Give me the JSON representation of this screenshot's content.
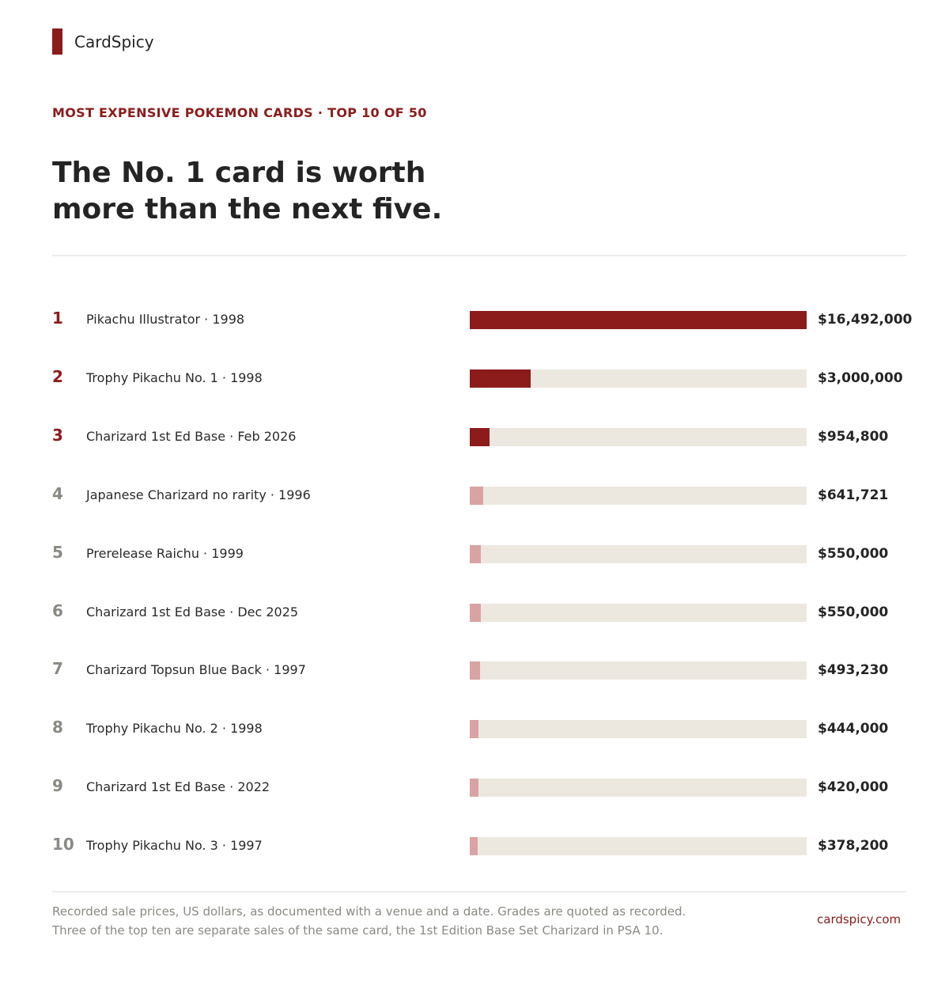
{
  "brand": {
    "name": "CardSpicy"
  },
  "kicker": "MOST EXPENSIVE POKEMON CARDS · TOP 10 OF 50",
  "headline": {
    "line1": "The No. 1 card is worth",
    "line2": "more than the next five."
  },
  "colors": {
    "accent": "#8c1c1c",
    "top_three_bar": "#8c1c1c",
    "other_bar": "#d9a3a3",
    "track": "#ece8e0",
    "top_rank_text": "#8c1c1c",
    "other_rank_text": "#8a8a84"
  },
  "chart_data": {
    "type": "bar",
    "orientation": "horizontal",
    "title": "The No. 1 card is worth more than the next five.",
    "xlim": [
      0,
      16492000
    ],
    "grid": false,
    "legend": "none",
    "highlighted_ranks": [
      1,
      2,
      3
    ],
    "rows": [
      {
        "rank": "1",
        "name": "Pikachu Illustrator · 1998",
        "value": 16492000,
        "value_label": "$16,492,000"
      },
      {
        "rank": "2",
        "name": "Trophy Pikachu No. 1 · 1998",
        "value": 3000000,
        "value_label": "$3,000,000"
      },
      {
        "rank": "3",
        "name": "Charizard 1st Ed Base · Feb 2026",
        "value": 954800,
        "value_label": "$954,800"
      },
      {
        "rank": "4",
        "name": "Japanese Charizard no rarity · 1996",
        "value": 641721,
        "value_label": "$641,721"
      },
      {
        "rank": "5",
        "name": "Prerelease Raichu · 1999",
        "value": 550000,
        "value_label": "$550,000"
      },
      {
        "rank": "6",
        "name": "Charizard 1st Ed Base · Dec 2025",
        "value": 550000,
        "value_label": "$550,000"
      },
      {
        "rank": "7",
        "name": "Charizard Topsun Blue Back · 1997",
        "value": 493230,
        "value_label": "$493,230"
      },
      {
        "rank": "8",
        "name": "Trophy Pikachu No. 2 · 1998",
        "value": 444000,
        "value_label": "$444,000"
      },
      {
        "rank": "9",
        "name": "Charizard 1st Ed Base · 2022",
        "value": 420000,
        "value_label": "$420,000"
      },
      {
        "rank": "10",
        "name": "Trophy Pikachu No. 3 · 1997",
        "value": 378200,
        "value_label": "$378,200"
      }
    ]
  },
  "footer": {
    "note_line1": "Recorded sale prices, US dollars, as documented with a venue and a date. Grades are quoted as recorded.",
    "note_line2": "Three of the top ten are separate sales of the same card, the 1st Edition Base Set Charizard in PSA 10.",
    "site": "cardspicy.com"
  }
}
